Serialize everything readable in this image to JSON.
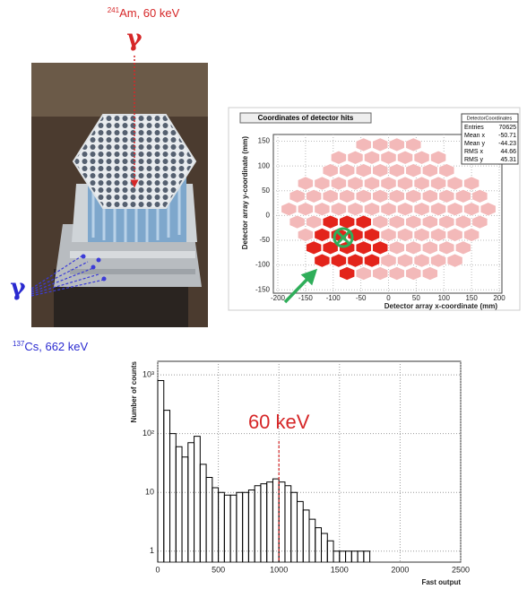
{
  "figure": {
    "top_source": {
      "mass": "241",
      "label": "Am, 60 keV",
      "symbol": "γ"
    },
    "side_source": {
      "mass": "137",
      "label": "Cs, 662 keV",
      "symbol": "γ"
    }
  },
  "chart_data": [
    {
      "type": "scatter",
      "title": "Coordinates of detector hits",
      "xlabel": "Detector array x-coordinate (mm)",
      "ylabel": "Detector array y-coordinate (mm)",
      "xlim": [
        -200,
        200
      ],
      "ylim": [
        -155,
        160
      ],
      "xticks": [
        -200,
        -150,
        -100,
        -50,
        0,
        50,
        100,
        150,
        200
      ],
      "yticks": [
        -150,
        -100,
        -50,
        0,
        50,
        100,
        150
      ],
      "grid": true,
      "stats": {
        "title": "DetectorCoordinates",
        "rows": [
          [
            "Entries",
            70625
          ],
          [
            "Mean x",
            -50.71
          ],
          [
            "Mean y",
            -44.23
          ],
          [
            "RMS x",
            44.66
          ],
          [
            "RMS y",
            45.31
          ]
        ]
      },
      "series": [
        {
          "color": "#f3b9b9",
          "x": [
            -45,
            -15,
            15,
            45,
            -90,
            -60,
            -30,
            0,
            30,
            60,
            90,
            -105,
            -75,
            -45,
            -15,
            15,
            45,
            75,
            105,
            -150,
            -120,
            -90,
            -60,
            -30,
            0,
            30,
            60,
            90,
            120,
            150,
            -165,
            -135,
            -105,
            -75,
            -45,
            -15,
            15,
            45,
            75,
            105,
            135,
            165,
            -180,
            -150,
            -120,
            -90,
            -60,
            -30,
            0,
            30,
            60,
            90,
            120,
            150,
            180,
            -165,
            -135,
            -15,
            15,
            45,
            75,
            105,
            135,
            165,
            -150,
            0,
            30,
            60,
            90,
            120,
            150,
            15,
            45,
            75,
            105,
            135,
            0,
            30,
            60,
            90,
            120,
            -45,
            -15,
            15,
            45,
            75
          ],
          "values": [
            143,
            143,
            143,
            143,
            117,
            117,
            117,
            117,
            117,
            117,
            117,
            91,
            91,
            91,
            91,
            91,
            91,
            91,
            91,
            65,
            65,
            65,
            65,
            65,
            65,
            65,
            65,
            65,
            65,
            65,
            39,
            39,
            39,
            39,
            39,
            39,
            39,
            39,
            39,
            39,
            39,
            39,
            13,
            13,
            13,
            13,
            13,
            13,
            13,
            13,
            13,
            13,
            13,
            13,
            13,
            -13,
            -13,
            -13,
            -13,
            -13,
            -13,
            -13,
            -13,
            -13,
            -39,
            -39,
            -39,
            -39,
            -39,
            -39,
            -39,
            -65,
            -65,
            -65,
            -65,
            -65,
            -91,
            -91,
            -91,
            -91,
            -91,
            -117,
            -117,
            -117,
            -117,
            -117
          ]
        },
        {
          "color": "#e3241b",
          "x": [
            -105,
            -75,
            -45,
            -120,
            -90,
            -60,
            -30,
            -135,
            -105,
            -75,
            -45,
            -15,
            -120,
            -90,
            -60,
            -30,
            -75
          ],
          "values": [
            -13,
            -13,
            -13,
            -39,
            -39,
            -39,
            -39,
            -65,
            -65,
            -65,
            -65,
            -65,
            -91,
            -91,
            -91,
            -91,
            -117
          ]
        }
      ]
    },
    {
      "type": "histogram",
      "ylabel": "Number of counts",
      "xlabel": "Fast output",
      "xlim": [
        0,
        2500
      ],
      "ylim": [
        0.65,
        1700
      ],
      "log_y": true,
      "grid": true,
      "color": "#000000",
      "xticks": [
        0,
        500,
        1000,
        1500,
        2000,
        2500
      ],
      "yticks": [
        1,
        10,
        {
          "value": 100,
          "label": "10²"
        },
        {
          "value": 1000,
          "label": "10³"
        }
      ],
      "bins": [
        0,
        50,
        100,
        150,
        200,
        250,
        300,
        350,
        400,
        450,
        500,
        550,
        600,
        650,
        700,
        750,
        800,
        850,
        900,
        950,
        1000,
        1050,
        1100,
        1150,
        1200,
        1250,
        1300,
        1350,
        1400,
        1450,
        1500,
        1550,
        1600,
        1650,
        1700,
        1750
      ],
      "values": [
        800,
        250,
        100,
        60,
        40,
        70,
        90,
        30,
        18,
        12,
        10,
        9,
        9,
        10,
        10,
        11,
        13,
        14,
        15,
        17,
        15,
        13,
        10,
        7,
        5,
        3.5,
        2.5,
        2,
        1.5,
        1,
        1,
        1,
        1,
        1,
        1
      ],
      "annotations": [
        {
          "text": "60 keV",
          "x": 1000,
          "color": "#d62728"
        }
      ]
    }
  ]
}
